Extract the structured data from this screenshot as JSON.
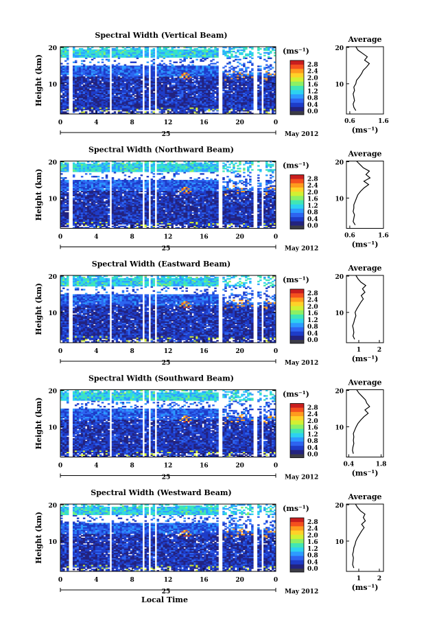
{
  "chart_data": [
    {
      "type": "heatmap",
      "title": "Spectral Width (Vertical Beam)",
      "ylabel": "Height (km)",
      "xlabel": "",
      "y_ticks": [
        "20",
        "10"
      ],
      "x_ticks": [
        "0",
        "4",
        "8",
        "12",
        "16",
        "20",
        "0"
      ],
      "date_mark": "25",
      "date_label": "May 2012",
      "colorbar_title": "(ms⁻¹)",
      "colorbar_ticks": [
        "2.8",
        "2.4",
        "2.0",
        "1.6",
        "1.2",
        "0.8",
        "0.4",
        "0.0"
      ],
      "ylim": [
        0,
        20
      ],
      "xlim": [
        0,
        24
      ],
      "profile": {
        "title": "Average",
        "xlabel": "(ms⁻¹)",
        "x_ticks": [
          "0.6",
          "1.6"
        ],
        "xlim": [
          0.5,
          1.6
        ],
        "y_ticks": [
          "20",
          "10"
        ],
        "height_km": [
          1,
          2,
          3,
          4,
          5,
          6,
          7,
          8,
          9,
          10,
          11,
          12,
          13,
          14,
          15,
          16,
          17,
          18,
          19,
          20
        ],
        "width": [
          0.78,
          0.72,
          0.7,
          0.74,
          0.72,
          0.7,
          0.74,
          0.72,
          0.78,
          0.8,
          0.88,
          0.95,
          1.0,
          1.1,
          1.18,
          1.04,
          1.12,
          0.98,
          0.84,
          0.78
        ]
      }
    },
    {
      "type": "heatmap",
      "title": "Spectral Width (Northward Beam)",
      "ylabel": "Height (km)",
      "xlabel": "",
      "y_ticks": [
        "20",
        "10"
      ],
      "x_ticks": [
        "0",
        "4",
        "8",
        "12",
        "16",
        "20",
        "0"
      ],
      "date_mark": "25",
      "date_label": "May 2012",
      "colorbar_title": "(ms⁻¹)",
      "colorbar_ticks": [
        "2.8",
        "2.4",
        "2.0",
        "1.6",
        "1.2",
        "0.8",
        "0.4",
        "0.0"
      ],
      "ylim": [
        0,
        20
      ],
      "xlim": [
        0,
        24
      ],
      "profile": {
        "title": "Average",
        "xlabel": "(ms⁻¹)",
        "x_ticks": [
          "0.6",
          "1.6"
        ],
        "xlim": [
          0.5,
          1.6
        ],
        "y_ticks": [
          "20",
          "10"
        ],
        "height_km": [
          1,
          2,
          3,
          4,
          5,
          6,
          7,
          8,
          9,
          10,
          11,
          12,
          13,
          14,
          15,
          16,
          17,
          18,
          19,
          20
        ],
        "width": [
          0.76,
          0.7,
          0.72,
          0.74,
          0.7,
          0.72,
          0.72,
          0.76,
          0.8,
          0.84,
          0.92,
          1.02,
          1.16,
          1.02,
          1.2,
          1.08,
          1.18,
          1.0,
          0.9,
          0.8
        ]
      }
    },
    {
      "type": "heatmap",
      "title": "Spectral Width (Eastward Beam)",
      "ylabel": "Height (km)",
      "xlabel": "",
      "y_ticks": [
        "20",
        "10"
      ],
      "x_ticks": [
        "0",
        "4",
        "8",
        "12",
        "16",
        "20",
        "0"
      ],
      "date_mark": "25",
      "date_label": "May 2012",
      "colorbar_title": "(ms⁻¹)",
      "colorbar_ticks": [
        "2.8",
        "2.4",
        "2.0",
        "1.6",
        "1.2",
        "0.8",
        "0.4",
        "0.0"
      ],
      "ylim": [
        0,
        20
      ],
      "xlim": [
        0,
        24
      ],
      "profile": {
        "title": "Average",
        "xlabel": "(ms⁻¹)",
        "x_ticks": [
          "1",
          "2"
        ],
        "xlim": [
          0.4,
          2.2
        ],
        "y_ticks": [
          "20",
          "10"
        ],
        "height_km": [
          1,
          2,
          3,
          4,
          5,
          6,
          7,
          8,
          9,
          10,
          11,
          12,
          13,
          14,
          15,
          16,
          17,
          18,
          19,
          20
        ],
        "width": [
          0.8,
          0.72,
          0.76,
          0.74,
          0.7,
          0.76,
          0.8,
          0.86,
          0.82,
          0.9,
          1.0,
          1.1,
          1.22,
          1.12,
          1.3,
          1.18,
          1.34,
          1.1,
          0.96,
          0.86
        ]
      }
    },
    {
      "type": "heatmap",
      "title": "Spectral Width (Southward Beam)",
      "ylabel": "Height (km)",
      "xlabel": "",
      "y_ticks": [
        "20",
        "10"
      ],
      "x_ticks": [
        "0",
        "4",
        "8",
        "12",
        "16",
        "20",
        "0"
      ],
      "date_mark": "25",
      "date_label": "May 2012",
      "colorbar_title": "(ms⁻¹)",
      "colorbar_ticks": [
        "2.8",
        "2.4",
        "2.0",
        "1.6",
        "1.2",
        "0.8",
        "0.4",
        "0.0"
      ],
      "ylim": [
        0,
        20
      ],
      "xlim": [
        0,
        24
      ],
      "profile": {
        "title": "Average",
        "xlabel": "(ms⁻¹)",
        "x_ticks": [
          "0.4",
          "1.8"
        ],
        "xlim": [
          0.3,
          1.9
        ],
        "y_ticks": [
          "20",
          "10"
        ],
        "height_km": [
          1,
          2,
          3,
          4,
          5,
          6,
          7,
          8,
          9,
          10,
          11,
          12,
          13,
          14,
          15,
          16,
          17,
          18,
          19,
          20
        ],
        "width": [
          0.6,
          0.56,
          0.58,
          0.62,
          0.6,
          0.62,
          0.6,
          0.66,
          0.72,
          0.8,
          0.92,
          1.06,
          1.24,
          1.1,
          1.3,
          1.18,
          1.12,
          0.98,
          0.84,
          0.74
        ]
      }
    },
    {
      "type": "heatmap",
      "title": "Spectral Width (Westward Beam)",
      "ylabel": "Height (km)",
      "xlabel": "Local Time",
      "y_ticks": [
        "20",
        "10"
      ],
      "x_ticks": [
        "0",
        "4",
        "8",
        "12",
        "16",
        "20",
        "0"
      ],
      "date_mark": "25",
      "date_label": "May 2012",
      "colorbar_title": "(ms⁻¹)",
      "colorbar_ticks": [
        "2.8",
        "2.4",
        "2.0",
        "1.6",
        "1.2",
        "0.8",
        "0.4",
        "0.0"
      ],
      "ylim": [
        0,
        20
      ],
      "xlim": [
        0,
        24
      ],
      "profile": {
        "title": "Average",
        "xlabel": "(ms⁻¹)",
        "x_ticks": [
          "1",
          "2"
        ],
        "xlim": [
          0.4,
          2.2
        ],
        "y_ticks": [
          "20",
          "10"
        ],
        "height_km": [
          1,
          2,
          3,
          4,
          5,
          6,
          7,
          8,
          9,
          10,
          11,
          12,
          13,
          14,
          15,
          16,
          17,
          18,
          19,
          20
        ],
        "width": [
          0.76,
          0.7,
          0.72,
          0.74,
          0.7,
          0.74,
          0.76,
          0.82,
          0.86,
          0.94,
          1.04,
          1.14,
          1.26,
          1.14,
          1.32,
          1.22,
          1.3,
          1.08,
          0.94,
          0.84
        ]
      }
    }
  ],
  "colors": {
    "scale": [
      "#23237f",
      "#1e3cc8",
      "#2d64f0",
      "#2d9bff",
      "#2dd2f0",
      "#41e6b4",
      "#8cf064",
      "#d2f032",
      "#ffd228",
      "#ff9b1e",
      "#f5501e",
      "#c81e1e"
    ],
    "under": "#3c3c46"
  }
}
